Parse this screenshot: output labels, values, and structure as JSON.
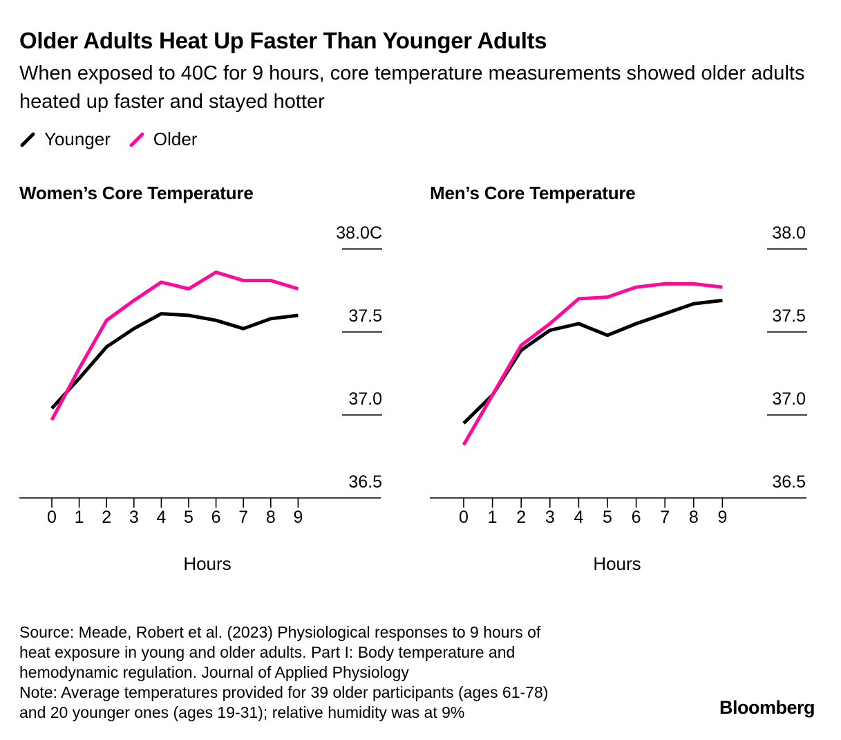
{
  "header": {
    "title": "Older Adults Heat Up Faster Than Younger Adults",
    "subtitle": "When exposed to 40C for 9 hours, core temperature measurements showed older adults heated up faster and stayed hotter"
  },
  "legend": [
    {
      "label": "Younger",
      "color": "#000000"
    },
    {
      "label": "Older",
      "color": "#ff0a9a"
    }
  ],
  "chart_data": [
    {
      "type": "line",
      "title": "Women’s Core Temperature",
      "xlabel": "Hours",
      "ylabel": "",
      "x": [
        0,
        1,
        2,
        3,
        4,
        5,
        6,
        7,
        8,
        9
      ],
      "ylim": [
        36.5,
        38.0
      ],
      "yticks": [
        {
          "value": 38.0,
          "label": "38.0C"
        },
        {
          "value": 37.5,
          "label": "37.5"
        },
        {
          "value": 37.0,
          "label": "37.0"
        },
        {
          "value": 36.5,
          "label": "36.5"
        }
      ],
      "series": [
        {
          "name": "Younger",
          "color": "#000000",
          "values": [
            37.04,
            37.22,
            37.41,
            37.52,
            37.61,
            37.6,
            37.57,
            37.52,
            37.58,
            37.6
          ]
        },
        {
          "name": "Older",
          "color": "#ff0a9a",
          "values": [
            36.97,
            37.28,
            37.57,
            37.69,
            37.8,
            37.76,
            37.86,
            37.81,
            37.81,
            37.76
          ]
        }
      ]
    },
    {
      "type": "line",
      "title": "Men’s Core Temperature",
      "xlabel": "Hours",
      "ylabel": "",
      "x": [
        0,
        1,
        2,
        3,
        4,
        5,
        6,
        7,
        8,
        9
      ],
      "ylim": [
        36.5,
        38.0
      ],
      "yticks": [
        {
          "value": 38.0,
          "label": "38.0"
        },
        {
          "value": 37.5,
          "label": "37.5"
        },
        {
          "value": 37.0,
          "label": "37.0"
        },
        {
          "value": 36.5,
          "label": "36.5"
        }
      ],
      "series": [
        {
          "name": "Younger",
          "color": "#000000",
          "values": [
            36.95,
            37.12,
            37.39,
            37.51,
            37.55,
            37.48,
            37.55,
            37.61,
            37.67,
            37.69
          ]
        },
        {
          "name": "Older",
          "color": "#ff0a9a",
          "values": [
            36.82,
            37.12,
            37.42,
            37.55,
            37.7,
            37.71,
            37.77,
            37.79,
            37.79,
            37.77
          ]
        }
      ]
    }
  ],
  "footer": {
    "source_lines": [
      "Source: Meade, Robert et al. (2023) Physiological responses to 9 hours of",
      "heat exposure in young and older adults. Part I: Body temperature and",
      "hemodynamic regulation. Journal of Applied Physiology",
      "Note: Average temperatures provided for 39 older participants (ages 61-78)",
      "and 20 younger ones (ages 19-31); relative humidity was at 9%"
    ],
    "brand": "Bloomberg"
  }
}
